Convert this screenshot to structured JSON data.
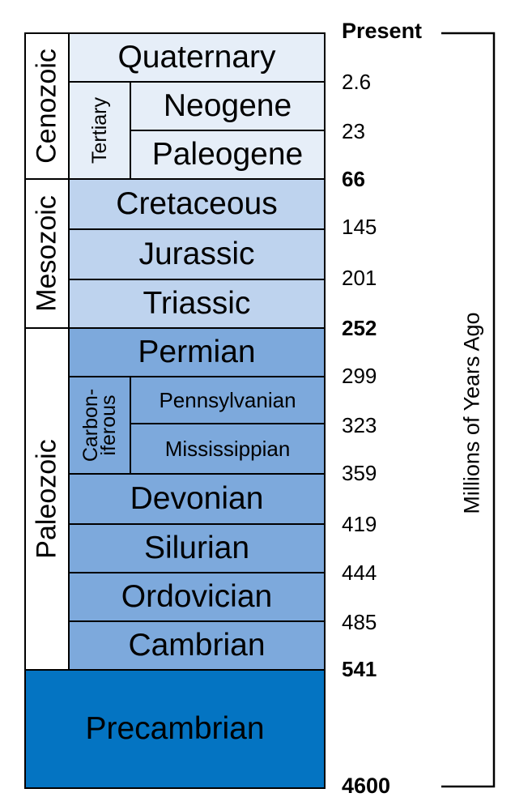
{
  "eras": {
    "cenozoic": "Cenozoic",
    "mesozoic": "Mesozoic",
    "paleozoic": "Paleozoic"
  },
  "groups": {
    "tertiary": "Tertiary",
    "carboniferous_line1": "Carbon-",
    "carboniferous_line2": "iferous"
  },
  "periods": {
    "quaternary": "Quaternary",
    "neogene": "Neogene",
    "paleogene": "Paleogene",
    "cretaceous": "Cretaceous",
    "jurassic": "Jurassic",
    "triassic": "Triassic",
    "permian": "Permian",
    "pennsylvanian": "Pennsylvanian",
    "mississippian": "Mississippian",
    "devonian": "Devonian",
    "silurian": "Silurian",
    "ordovician": "Ordovician",
    "cambrian": "Cambrian",
    "precambrian": "Precambrian"
  },
  "ages": {
    "present": "Present",
    "a2_6": "2.6",
    "a23": "23",
    "a66": "66",
    "a145": "145",
    "a201": "201",
    "a252": "252",
    "a299": "299",
    "a323": "323",
    "a359": "359",
    "a419": "419",
    "a444": "444",
    "a485": "485",
    "a541": "541",
    "a4600": "4600"
  },
  "axis_label": "Millions of Years Ago",
  "colors": {
    "cenozoic_fill": "#e6eef8",
    "mesozoic_fill": "#bed3ee",
    "paleozoic_fill": "#7da9dc",
    "precambrian_fill": "#0474c2",
    "era_fill": "#ffffff",
    "line": "#000000"
  }
}
